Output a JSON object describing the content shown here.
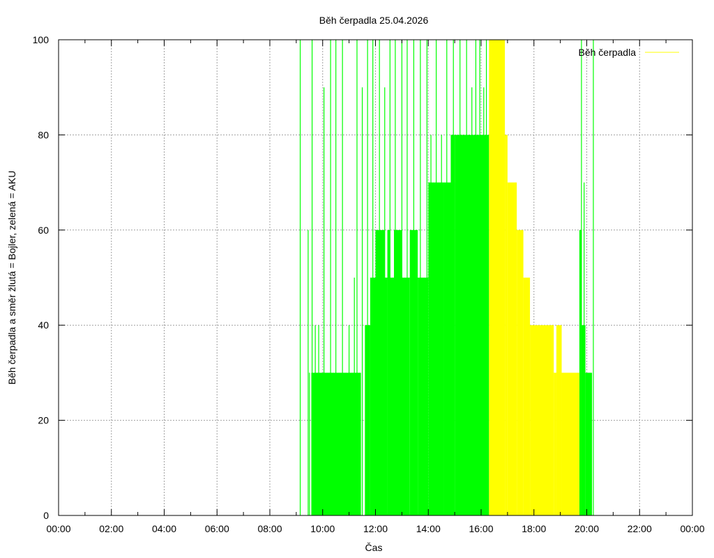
{
  "chart_data": {
    "type": "area",
    "title": "Běh čerpadla 25.04.2026",
    "xlabel": "Čas",
    "ylabel": "Běh čerpadla a směr žlutá = Bojler, zelená = AKU",
    "xlim": [
      0,
      24
    ],
    "ylim": [
      0,
      100
    ],
    "x_ticks": [
      "00:00",
      "02:00",
      "04:00",
      "06:00",
      "08:00",
      "10:00",
      "12:00",
      "14:00",
      "16:00",
      "18:00",
      "20:00",
      "22:00",
      "00:00"
    ],
    "x_tick_values": [
      0,
      2,
      4,
      6,
      8,
      10,
      12,
      14,
      16,
      18,
      20,
      22,
      24
    ],
    "y_ticks": [
      "0",
      "20",
      "40",
      "60",
      "80",
      "100"
    ],
    "y_tick_values": [
      0,
      20,
      40,
      60,
      80,
      100
    ],
    "grid": true,
    "legend_position": "top-right",
    "legend_entries": [
      {
        "label": "Běh čerpadla",
        "color": "#ffff00"
      }
    ],
    "colors": {
      "aku": "#00ff00",
      "bojler": "#ffff00",
      "grid": "#a0a0a0",
      "frame": "#000000"
    },
    "series": [
      {
        "color": "#00ff00",
        "segments": [
          {
            "x": [
              9.57,
              11.45
            ],
            "y": 30
          },
          {
            "x": [
              11.6,
              11.8
            ],
            "y": 40
          },
          {
            "x": [
              11.8,
              12.0
            ],
            "y": 50
          },
          {
            "x": [
              12.0,
              12.35
            ],
            "y": 60
          },
          {
            "x": [
              12.35,
              12.45
            ],
            "y": 50
          },
          {
            "x": [
              12.45,
              12.55
            ],
            "y": 60
          },
          {
            "x": [
              12.55,
              13.3
            ],
            "y": 50
          },
          {
            "x": [
              12.7,
              13.0
            ],
            "y": 60
          },
          {
            "x": [
              13.3,
              13.6
            ],
            "y": 60
          },
          {
            "x": [
              13.6,
              14.0
            ],
            "y": 50
          },
          {
            "x": [
              14.0,
              14.6
            ],
            "y": 70
          },
          {
            "x": [
              14.6,
              15.0
            ],
            "y": 70
          },
          {
            "x": [
              14.85,
              15.0
            ],
            "y": 80
          },
          {
            "x": [
              15.0,
              16.3
            ],
            "y": 80
          },
          {
            "x": [
              19.72,
              19.8
            ],
            "y": 60
          },
          {
            "x": [
              19.8,
              19.95
            ],
            "y": 40
          },
          {
            "x": [
              19.95,
              20.2
            ],
            "y": 30
          }
        ],
        "spikes": [
          {
            "x": 9.15,
            "y": 100
          },
          {
            "x": 9.45,
            "y": 60
          },
          {
            "x": 9.5,
            "y": 30
          },
          {
            "x": 9.6,
            "y": 100
          },
          {
            "x": 9.72,
            "y": 40
          },
          {
            "x": 9.85,
            "y": 40
          },
          {
            "x": 10.05,
            "y": 90
          },
          {
            "x": 10.3,
            "y": 100
          },
          {
            "x": 10.5,
            "y": 100
          },
          {
            "x": 10.75,
            "y": 100
          },
          {
            "x": 11.0,
            "y": 40
          },
          {
            "x": 11.2,
            "y": 50
          },
          {
            "x": 11.3,
            "y": 100
          },
          {
            "x": 11.5,
            "y": 90
          },
          {
            "x": 11.7,
            "y": 100
          },
          {
            "x": 11.9,
            "y": 100
          },
          {
            "x": 12.15,
            "y": 100
          },
          {
            "x": 12.35,
            "y": 90
          },
          {
            "x": 12.55,
            "y": 100
          },
          {
            "x": 12.75,
            "y": 100
          },
          {
            "x": 13.0,
            "y": 100
          },
          {
            "x": 13.2,
            "y": 100
          },
          {
            "x": 13.45,
            "y": 100
          },
          {
            "x": 13.7,
            "y": 100
          },
          {
            "x": 13.95,
            "y": 100
          },
          {
            "x": 14.1,
            "y": 80
          },
          {
            "x": 14.3,
            "y": 100
          },
          {
            "x": 14.5,
            "y": 80
          },
          {
            "x": 14.7,
            "y": 100
          },
          {
            "x": 14.95,
            "y": 100
          },
          {
            "x": 15.2,
            "y": 100
          },
          {
            "x": 15.45,
            "y": 100
          },
          {
            "x": 15.65,
            "y": 90
          },
          {
            "x": 15.8,
            "y": 100
          },
          {
            "x": 15.95,
            "y": 100
          },
          {
            "x": 16.1,
            "y": 90
          },
          {
            "x": 16.2,
            "y": 100
          },
          {
            "x": 19.9,
            "y": 70
          },
          {
            "x": 19.8,
            "y": 100
          },
          {
            "x": 20.25,
            "y": 100
          }
        ]
      },
      {
        "name": "Běh čerpadla",
        "color": "#ffff00",
        "segments": [
          {
            "x": [
              16.3,
              16.9
            ],
            "y": 100
          },
          {
            "x": [
              16.9,
              17.0
            ],
            "y": 80
          },
          {
            "x": [
              17.0,
              17.35
            ],
            "y": 70
          },
          {
            "x": [
              17.35,
              17.6
            ],
            "y": 60
          },
          {
            "x": [
              17.6,
              17.85
            ],
            "y": 50
          },
          {
            "x": [
              17.85,
              18.75
            ],
            "y": 40
          },
          {
            "x": [
              18.75,
              18.85
            ],
            "y": 30
          },
          {
            "x": [
              18.85,
              19.05
            ],
            "y": 40
          },
          {
            "x": [
              19.05,
              19.72
            ],
            "y": 30
          }
        ],
        "spikes": []
      }
    ]
  }
}
